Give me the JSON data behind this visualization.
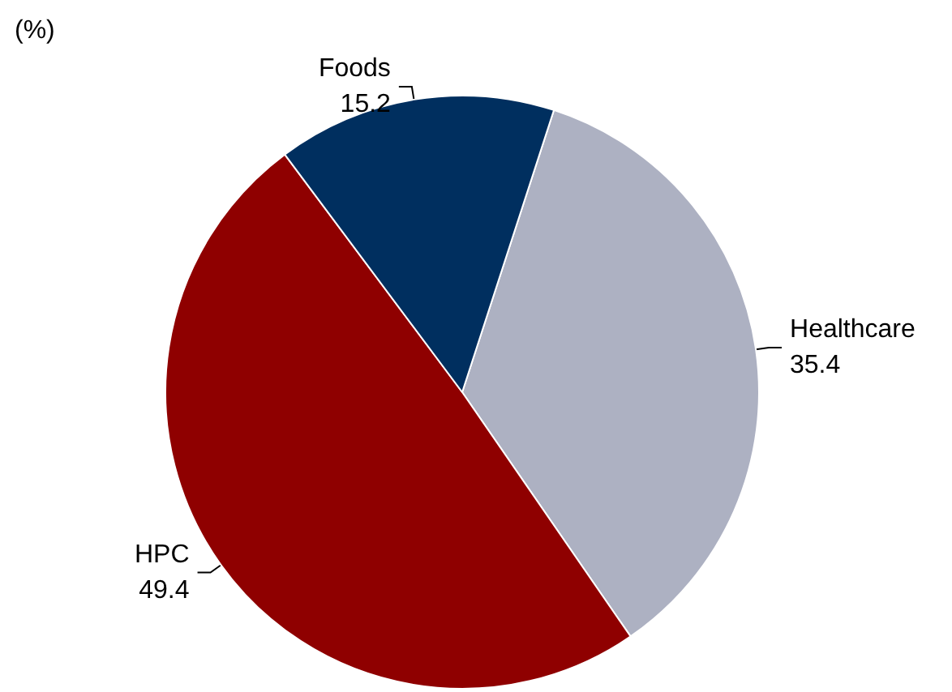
{
  "chart_data": {
    "type": "pie",
    "title": "(%)",
    "categories": [
      "Healthcare",
      "HPC",
      "Foods"
    ],
    "values": [
      35.4,
      49.4,
      15.2
    ],
    "colors": [
      "#adb1c2",
      "#8f0000",
      "#002f5f"
    ],
    "data_labels": true,
    "legend": false
  }
}
